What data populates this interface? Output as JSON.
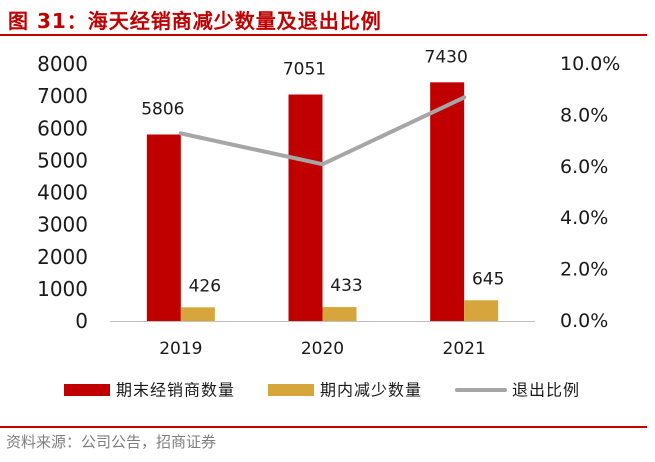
{
  "figure": {
    "title": "图 31：海天经销商减少数量及退出比例",
    "source": "资料来源：公司公告，招商证券"
  },
  "colors": {
    "accent": "#c00000",
    "bar_total": "#c00000",
    "bar_reduced": "#d6a63c",
    "line_exit": "#a6a6a6",
    "source_text": "#7f7f7f"
  },
  "chart_data": {
    "type": "bar",
    "categories": [
      "2019",
      "2020",
      "2021"
    ],
    "series": [
      {
        "name": "期末经销商数量",
        "kind": "bar",
        "axis": "left",
        "values": [
          5806,
          7051,
          7430
        ],
        "labels": [
          "5806",
          "7051",
          "7430"
        ]
      },
      {
        "name": "期内减少数量",
        "kind": "bar",
        "axis": "left",
        "values": [
          426,
          433,
          645
        ],
        "labels": [
          "426",
          "433",
          "645"
        ]
      },
      {
        "name": "退出比例",
        "kind": "line",
        "axis": "right",
        "values": [
          0.073,
          0.061,
          0.087
        ]
      }
    ],
    "ylim_left": [
      0,
      8000
    ],
    "yticks_left": [
      "0",
      "1000",
      "2000",
      "3000",
      "4000",
      "5000",
      "6000",
      "7000",
      "8000"
    ],
    "ylim_right": [
      0,
      0.1
    ],
    "yticks_right": [
      "0.0%",
      "2.0%",
      "4.0%",
      "6.0%",
      "8.0%",
      "10.0%"
    ],
    "grid": false,
    "legend_position": "bottom"
  }
}
